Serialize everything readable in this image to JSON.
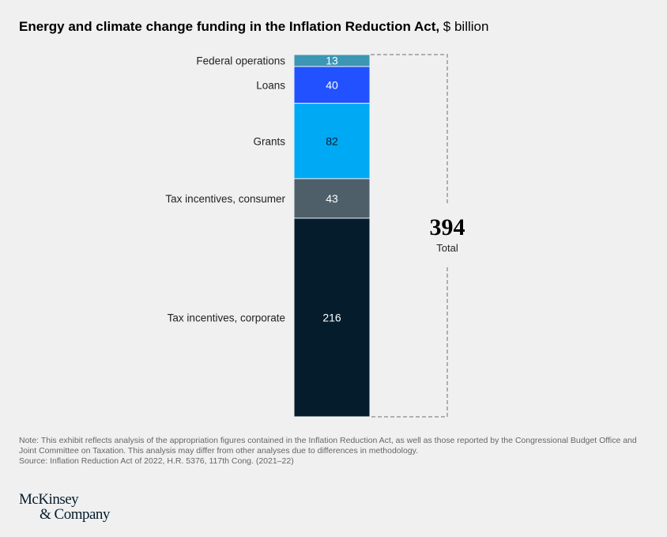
{
  "title": {
    "main": "Energy and climate change funding in the Inflation Reduction Act,",
    "unit": " $ billion"
  },
  "chart_data": {
    "type": "bar",
    "stacked": true,
    "title": "Energy and climate change funding in the Inflation Reduction Act, $ billion",
    "categories": [
      "Federal operations",
      "Loans",
      "Grants",
      "Tax incentives, consumer",
      "Tax incentives, corporate"
    ],
    "values": [
      13,
      40,
      82,
      43,
      216
    ],
    "colors": [
      "#3c96b4",
      "#2251ff",
      "#00a9f4",
      "#4e5f6a",
      "#051c2c"
    ],
    "label_colors": [
      "#ffffff",
      "#ffffff",
      "#051c2c",
      "#ffffff",
      "#ffffff"
    ],
    "total": {
      "value": "394",
      "label": "Total"
    }
  },
  "footnote": {
    "note": "Note: This exhibit reflects analysis of the appropriation figures contained in the Inflation Reduction Act, as well as those reported by the Congressional Budget Office and Joint Committee on Taxation. This analysis may differ from other analyses due to differences in methodology.",
    "source": "Source: Inflation Reduction Act of 2022, H.R. 5376, 117th Cong. (2021–22)"
  },
  "logo": {
    "line1": "McKinsey",
    "line2": "& Company"
  }
}
